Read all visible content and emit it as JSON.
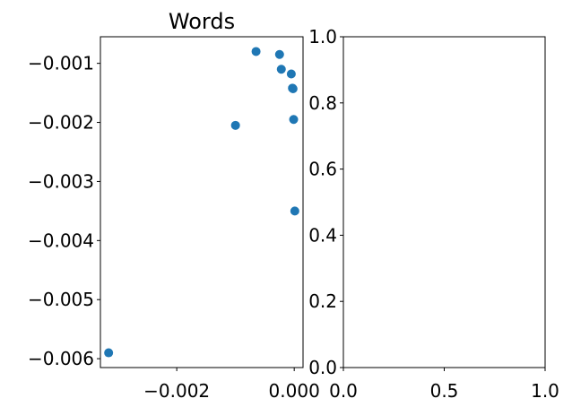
{
  "chart_data": [
    {
      "type": "scatter",
      "title": "Words",
      "xlabel": "",
      "ylabel": "",
      "xlim": [
        -0.0033,
        0.00015
      ],
      "ylim": [
        -0.00615,
        -0.00055
      ],
      "grid": false,
      "marker_color": "#1f77b4",
      "xticks": [
        -0.002,
        0.0
      ],
      "xtick_labels": [
        "−0.002",
        "0.000"
      ],
      "yticks": [
        -0.001,
        -0.002,
        -0.003,
        -0.004,
        -0.005,
        -0.006
      ],
      "ytick_labels": [
        "−0.001",
        "−0.002",
        "−0.003",
        "−0.004",
        "−0.005",
        "−0.006"
      ],
      "points": [
        {
          "x": -0.00316,
          "y": -0.0059
        },
        {
          "x": -0.001,
          "y": -0.00205
        },
        {
          "x": -0.00065,
          "y": -0.0008
        },
        {
          "x": -0.00025,
          "y": -0.00085
        },
        {
          "x": -0.00022,
          "y": -0.0011
        },
        {
          "x": -5e-05,
          "y": -0.00118
        },
        {
          "x": -3e-05,
          "y": -0.00142
        },
        {
          "x": -2e-05,
          "y": -0.00143
        },
        {
          "x": -1e-05,
          "y": -0.00195
        },
        {
          "x": 1e-05,
          "y": -0.0035
        }
      ]
    },
    {
      "type": "scatter",
      "title": "",
      "xlabel": "",
      "ylabel": "",
      "xlim": [
        0.0,
        1.0
      ],
      "ylim": [
        0.0,
        1.0
      ],
      "grid": false,
      "xticks": [
        0.0,
        0.5,
        1.0
      ],
      "xtick_labels": [
        "0.0",
        "0.5",
        "1.0"
      ],
      "yticks": [
        0.0,
        0.2,
        0.4,
        0.6,
        0.8,
        1.0
      ],
      "ytick_labels": [
        "0.0",
        "0.2",
        "0.4",
        "0.6",
        "0.8",
        "1.0"
      ],
      "points": []
    }
  ]
}
